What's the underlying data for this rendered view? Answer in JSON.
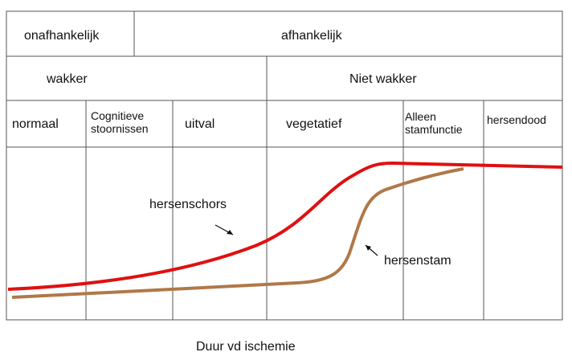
{
  "rows": [
    [
      "onafhankelijk",
      "afhankelijk"
    ],
    [
      "wakker",
      "Niet wakker"
    ],
    [
      "normaal",
      "Cognitieve stoornissen",
      "uitval",
      "vegetatief",
      "Alleen stamfunctie",
      "hersendood"
    ]
  ],
  "curves": [
    "hersenschors",
    "hersenstam"
  ],
  "x_label": "Duur vd ischemie"
}
